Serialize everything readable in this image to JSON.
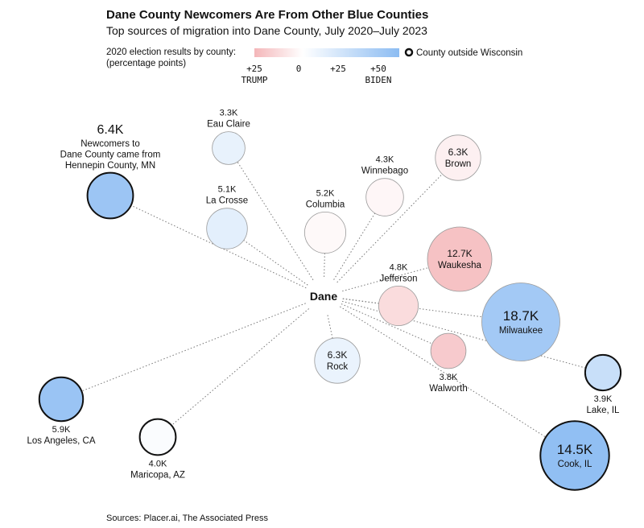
{
  "header": {
    "title": "Dane County Newcomers Are From Other Blue Counties",
    "subtitle": "Top sources of migration into Dane County, July 2020–July 2023"
  },
  "legend": {
    "scale_label_line1": "2020 election results by county:",
    "scale_label_line2": "(percentage points)",
    "ticks": [
      "+25",
      "0",
      "+25",
      "+50"
    ],
    "trump_label": "TRUMP",
    "biden_label": "BIDEN",
    "outside_label": "County outside Wisconsin",
    "colors": {
      "trump_max": "#f4b6b9",
      "neutral": "#ffffff",
      "biden_max": "#8cbcf2"
    }
  },
  "footer": {
    "sources": "Sources: Placer.ai, The Associated Press"
  },
  "chart_data": {
    "type": "network-bubble",
    "hub": "Dane",
    "unit": "K newcomers",
    "margin_scale": {
      "min": -25,
      "max": 50,
      "unit": "percentage points (positive = Biden)"
    },
    "nodes": [
      {
        "name": "Eau Claire",
        "label": "Eau Claire",
        "value": 3.3,
        "value_label": "3.3K",
        "margin": 10,
        "outside_wi": false
      },
      {
        "name": "Hennepin County, MN",
        "label": "Newcomers to Dane County came from Hennepin County, MN",
        "value": 6.4,
        "value_label": "6.4K",
        "margin": 43,
        "outside_wi": true
      },
      {
        "name": "La Crosse",
        "label": "La Crosse",
        "value": 5.1,
        "value_label": "5.1K",
        "margin": 12,
        "outside_wi": false
      },
      {
        "name": "Columbia",
        "label": "Columbia",
        "value": 5.2,
        "value_label": "5.2K",
        "margin": -2,
        "outside_wi": false
      },
      {
        "name": "Winnebago",
        "label": "Winnebago",
        "value": 4.3,
        "value_label": "4.3K",
        "margin": -3,
        "outside_wi": false
      },
      {
        "name": "Brown",
        "label": "Brown",
        "value": 6.3,
        "value_label": "6.3K",
        "margin": -5,
        "outside_wi": false
      },
      {
        "name": "Waukesha",
        "label": "Waukesha",
        "value": 12.7,
        "value_label": "12.7K",
        "margin": -21,
        "outside_wi": false
      },
      {
        "name": "Jefferson",
        "label": "Jefferson",
        "value": 4.8,
        "value_label": "4.8K",
        "margin": -12,
        "outside_wi": false
      },
      {
        "name": "Milwaukee",
        "label": "Milwaukee",
        "value": 18.7,
        "value_label": "18.7K",
        "margin": 40,
        "outside_wi": false
      },
      {
        "name": "Rock",
        "label": "Rock",
        "value": 6.3,
        "value_label": "6.3K",
        "margin": 9,
        "outside_wi": false
      },
      {
        "name": "Walworth",
        "label": "Walworth",
        "value": 3.8,
        "value_label": "3.8K",
        "margin": -18,
        "outside_wi": false
      },
      {
        "name": "Lake, IL",
        "label": "Lake, IL",
        "value": 3.9,
        "value_label": "3.9K",
        "margin": 24,
        "outside_wi": true
      },
      {
        "name": "Cook, IL",
        "label": "Cook, IL",
        "value": 14.5,
        "value_label": "14.5K",
        "margin": 48,
        "outside_wi": true
      },
      {
        "name": "Los Angeles, CA",
        "label": "Los Angeles, CA",
        "value": 5.9,
        "value_label": "5.9K",
        "margin": 44,
        "outside_wi": true
      },
      {
        "name": "Maricopa, AZ",
        "label": "Maricopa, AZ",
        "value": 4.0,
        "value_label": "4.0K",
        "margin": 2,
        "outside_wi": true
      }
    ]
  }
}
